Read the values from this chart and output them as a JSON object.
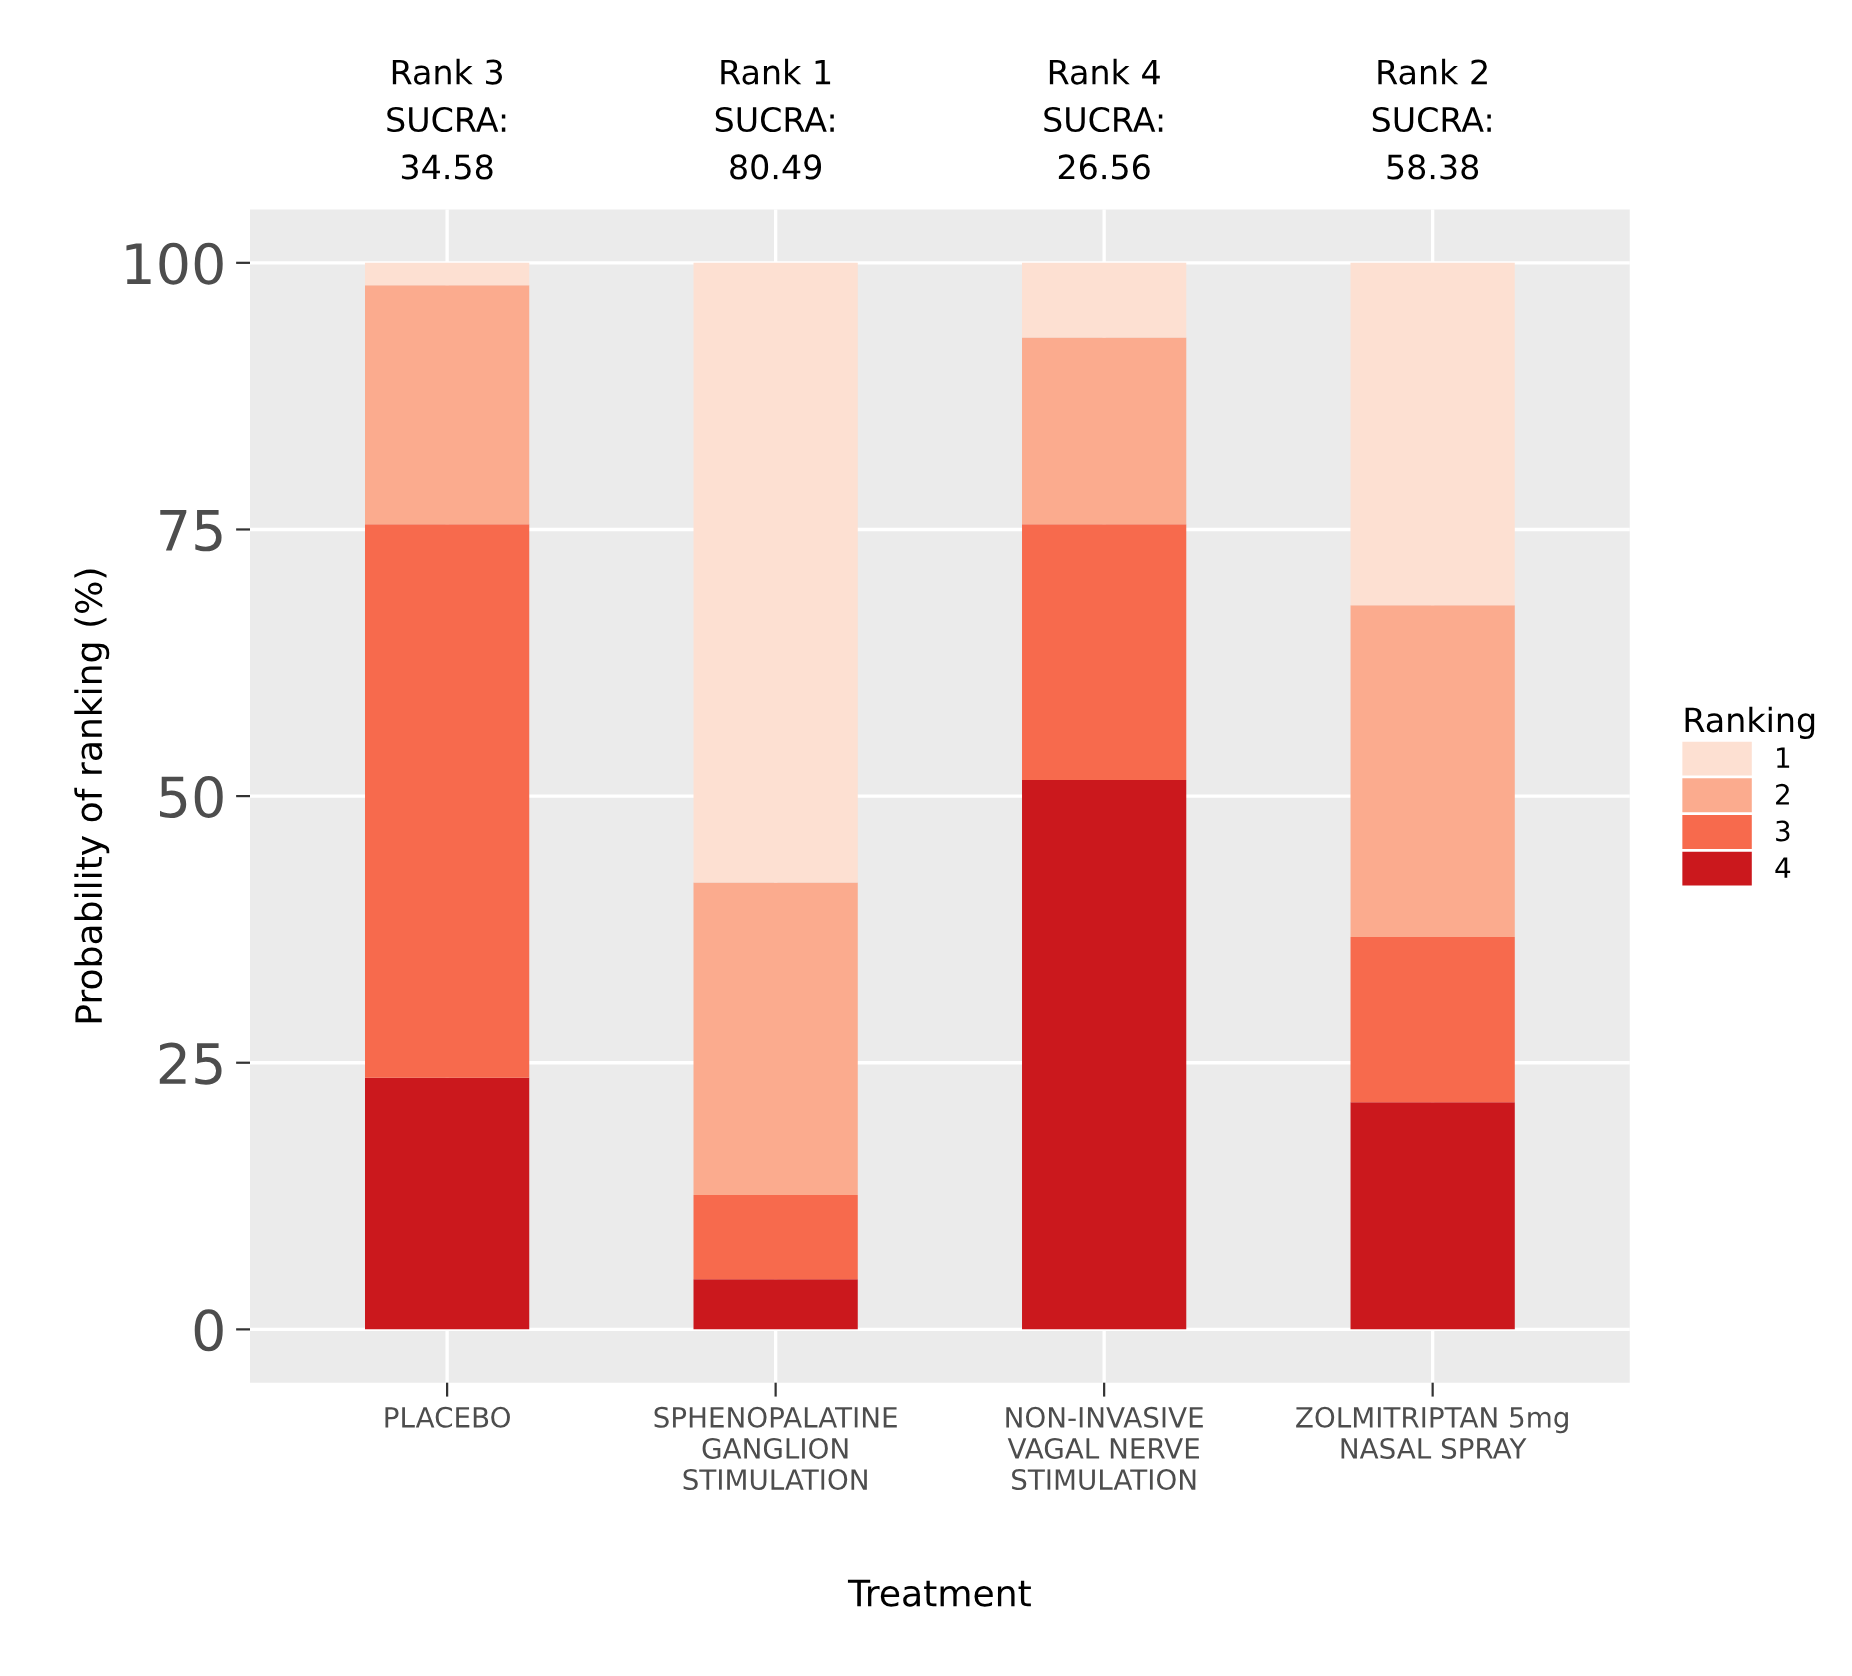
{
  "chart_data": {
    "type": "bar",
    "stacked": true,
    "categories": [
      "PLACEBO",
      "SPHENOPALATINE\nGANGLION\nSTIMULATION",
      "NON-INVASIVE\nVAGAL NERVE\nSTIMULATION",
      "ZOLMITRIPTAN 5mg\nNASAL SPRAY"
    ],
    "series": [
      {
        "name": "4",
        "color": "#cb181d",
        "values": [
          23.6,
          4.7,
          51.5,
          21.3
        ]
      },
      {
        "name": "3",
        "color": "#f76a4d",
        "values": [
          51.9,
          7.9,
          24.0,
          15.5
        ]
      },
      {
        "name": "2",
        "color": "#fbab8e",
        "values": [
          22.4,
          29.3,
          17.5,
          31.1
        ]
      },
      {
        "name": "1",
        "color": "#fde0d2",
        "values": [
          2.1,
          58.1,
          7.0,
          32.1
        ]
      }
    ],
    "annotations": [
      "Rank 3\nSUCRA:\n34.58",
      "Rank 1\nSUCRA:\n80.49",
      "Rank 4\nSUCRA:\n26.56",
      "Rank 2\nSUCRA:\n58.38"
    ],
    "xlabel": "Treatment",
    "ylabel": "Probability of ranking (%)",
    "legend_title": "Ranking",
    "ylim": [
      -5,
      105
    ],
    "yticks": [
      0,
      25,
      50,
      75,
      100
    ],
    "grid": true,
    "legend": "right"
  }
}
